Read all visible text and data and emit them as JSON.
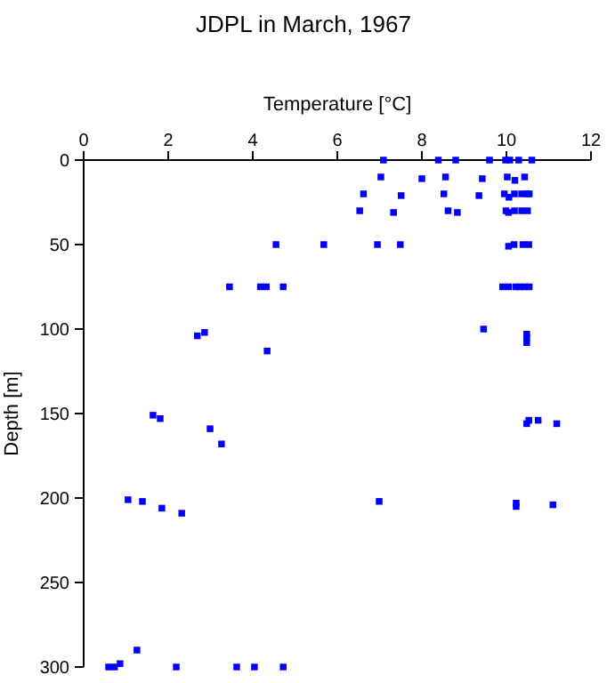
{
  "chart_data": {
    "type": "scatter",
    "title": "JDPL in March, 1967",
    "xlabel": "Temperature [°C]",
    "ylabel": "Depth [m]",
    "xlim": [
      0,
      12
    ],
    "xticks": [
      0,
      2,
      4,
      6,
      8,
      10,
      12
    ],
    "ylim": [
      300,
      0
    ],
    "yticks": [
      0,
      50,
      100,
      150,
      200,
      250,
      300
    ],
    "marker": "square",
    "grid": false,
    "series": [
      {
        "color": "#0000ff",
        "x": [
          7.09,
          8.39,
          8.8,
          9.6,
          9.98,
          10.08,
          10.29,
          10.6,
          7.03,
          8.0,
          8.56,
          9.43,
          10.02,
          10.2,
          10.43,
          6.62,
          7.51,
          8.52,
          9.35,
          9.95,
          10.06,
          10.19,
          10.36,
          10.48,
          10.54,
          6.53,
          7.33,
          8.62,
          8.84,
          9.99,
          10.05,
          10.19,
          10.36,
          10.5,
          4.55,
          5.68,
          6.95,
          7.49,
          10.05,
          10.18,
          10.39,
          10.53,
          3.45,
          4.18,
          4.32,
          4.72,
          9.91,
          10.05,
          10.22,
          10.32,
          10.43,
          10.54,
          9.46,
          2.69,
          2.86,
          4.34,
          10.48,
          10.48,
          10.48,
          1.64,
          1.81,
          2.99,
          3.26,
          10.48,
          10.53,
          10.75,
          11.19,
          1.05,
          1.39,
          1.85,
          2.32,
          6.99,
          10.23,
          10.23,
          11.1,
          0.59,
          0.73,
          0.86,
          1.26,
          2.19,
          3.62,
          4.04,
          4.72
        ],
        "values": [
          0,
          0,
          0,
          0,
          0,
          0,
          0,
          0,
          10,
          11,
          10,
          11,
          10,
          12,
          10,
          20,
          21,
          20,
          21,
          20,
          22,
          20,
          20,
          20,
          20,
          30,
          31,
          30,
          31,
          30,
          31,
          30,
          30,
          30,
          50,
          50,
          50,
          50,
          51,
          50,
          50,
          50,
          75,
          75,
          75,
          75,
          75,
          75,
          75,
          75,
          75,
          75,
          100,
          104,
          102,
          113,
          103,
          105,
          108,
          151,
          153,
          159,
          168,
          156,
          154,
          154,
          156,
          201,
          202,
          206,
          209,
          202,
          203,
          205,
          204,
          300,
          300,
          298,
          290,
          300,
          300,
          300,
          300
        ]
      }
    ]
  }
}
